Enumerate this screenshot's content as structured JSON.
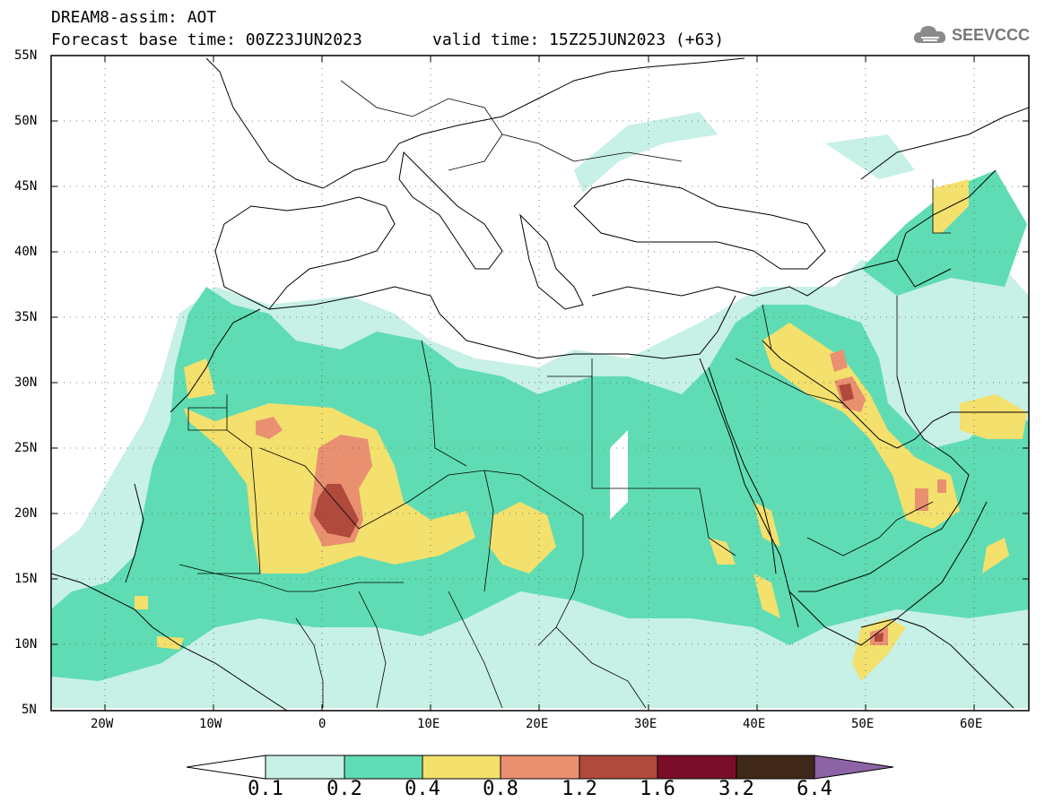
{
  "header": {
    "line1": "DREAM8-assim: AOT",
    "base_time": "Forecast base time: 00Z23JUN2023",
    "valid_time": "valid time: 15Z25JUN2023 (+63)"
  },
  "logo": {
    "text": "SEEVCCC",
    "icon": "cloud-icon"
  },
  "map": {
    "lon_range": [
      -25,
      65
    ],
    "lat_range": [
      5,
      55
    ],
    "lat_ticks": [
      "55N",
      "50N",
      "45N",
      "40N",
      "35N",
      "30N",
      "25N",
      "20N",
      "15N",
      "10N",
      "5N"
    ],
    "lon_ticks": [
      "20W",
      "10W",
      "0",
      "10E",
      "20E",
      "30E",
      "40E",
      "50E",
      "60E"
    ],
    "grid": "dotted"
  },
  "colorbar": {
    "labels": [
      "0.1",
      "0.2",
      "0.4",
      "0.8",
      "1.2",
      "1.6",
      "3.2",
      "6.4"
    ],
    "colors": [
      "#c7f0e6",
      "#5fdcb4",
      "#f3e06d",
      "#e99070",
      "#b04a3c",
      "#7a0e2a",
      "#402818",
      "#8c64a6"
    ]
  }
}
